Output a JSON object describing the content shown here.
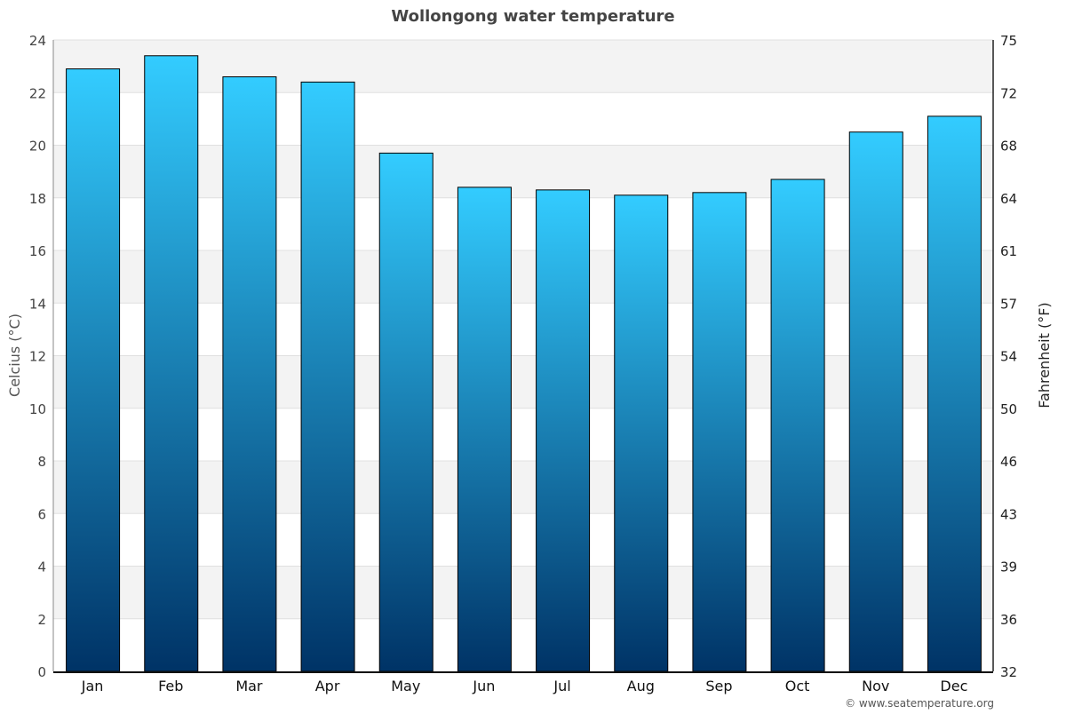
{
  "chart_data": {
    "type": "bar",
    "title": "Wollongong water temperature",
    "ylabel": "Celcius (°C)",
    "ylabel_right": "Fahrenheit (°F)",
    "xlabel": "",
    "categories": [
      "Jan",
      "Feb",
      "Mar",
      "Apr",
      "May",
      "Jun",
      "Jul",
      "Aug",
      "Sep",
      "Oct",
      "Nov",
      "Dec"
    ],
    "values": [
      22.9,
      23.4,
      22.6,
      22.4,
      19.7,
      18.4,
      18.3,
      18.1,
      18.2,
      18.7,
      20.5,
      21.1
    ],
    "ylim": [
      0,
      24
    ],
    "y_ticks": [
      0,
      2,
      4,
      6,
      8,
      10,
      12,
      14,
      16,
      18,
      20,
      22,
      24
    ],
    "y_right_ticks": [
      "32",
      "36",
      "39",
      "43",
      "46",
      "50",
      "54",
      "57",
      "61",
      "64",
      "68",
      "72",
      "75"
    ],
    "grid": true,
    "legend": "none",
    "colors": {
      "bar_top": "#33ccff",
      "bar_bottom": "#003366",
      "band": "#f3f3f3"
    }
  },
  "credit": "© www.seatemperature.org"
}
